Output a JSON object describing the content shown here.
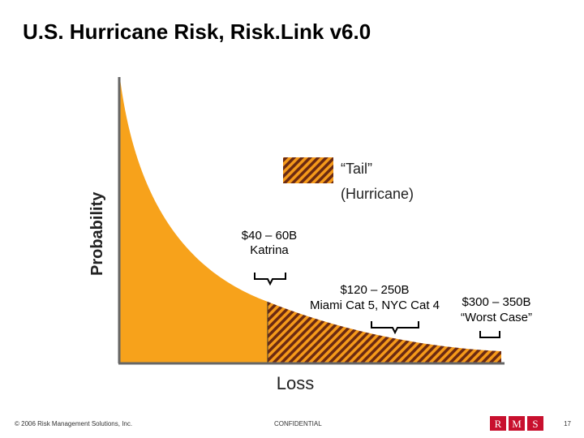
{
  "title": "U.S. Hurricane Risk, Risk.Link v6.0",
  "y_axis_label": "Probability",
  "x_axis_label": "Loss",
  "legend": {
    "lines": [
      "“Tail”",
      "(Hurricane)"
    ]
  },
  "annotations": [
    {
      "lines": [
        "$40 – 60B",
        "Katrina"
      ]
    },
    {
      "lines": [
        "$120 – 250B",
        "Miami Cat 5, NYC Cat 4"
      ]
    },
    {
      "lines": [
        "$300 – 350B",
        "“Worst Case”"
      ]
    }
  ],
  "footer": {
    "copyright": "© 2006 Risk Management Solutions, Inc.",
    "confidential": "CONFIDENTIAL",
    "logo": [
      "R",
      "M",
      "S"
    ],
    "page": "17"
  }
}
